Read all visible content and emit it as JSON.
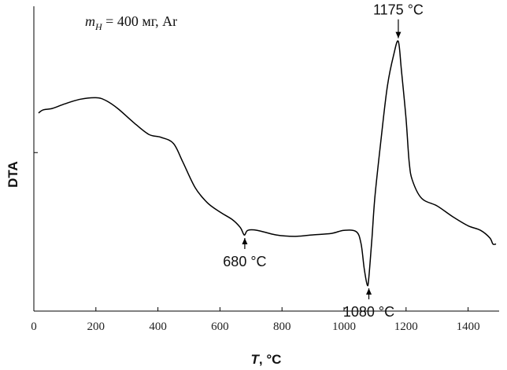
{
  "chart_data": {
    "type": "line",
    "title": "",
    "sample_note": {
      "prefix": "m",
      "subscript": "H",
      "rest": " = 400 мг, Ar"
    },
    "xlabel": {
      "symbol": "T",
      "unit": ", °C"
    },
    "ylabel": "DTA",
    "xlim": [
      0,
      1500
    ],
    "xticks": [
      0,
      200,
      400,
      600,
      800,
      1000,
      1200,
      1400
    ],
    "xtick_labels": [
      "0",
      "200",
      "400",
      "600",
      "800",
      "1000",
      "1200",
      "1400"
    ],
    "ylim": [
      0,
      100
    ],
    "yticks": [
      52
    ],
    "grid": false,
    "series": [
      {
        "x": [
          15,
          30,
          60,
          100,
          150,
          200,
          230,
          270,
          320,
          370,
          410,
          450,
          480,
          520,
          560,
          600,
          640,
          665,
          675,
          680,
          690,
          720,
          780,
          840,
          900,
          960,
          1000,
          1040,
          1055,
          1065,
          1075,
          1080,
          1090,
          1100,
          1120,
          1140,
          1160,
          1175,
          1185,
          1200,
          1210,
          1220,
          1250,
          1300,
          1350,
          1400,
          1440,
          1470,
          1480,
          1490
        ],
        "y": [
          65,
          66,
          66.5,
          68,
          69.5,
          70,
          69.2,
          66.5,
          62,
          58,
          57,
          55,
          49,
          40.5,
          35.5,
          32.5,
          30,
          27.5,
          25.5,
          25,
          26.5,
          26.5,
          25,
          24.5,
          25,
          25.5,
          26.5,
          26,
          22,
          14,
          8.5,
          11,
          24,
          38,
          57,
          74,
          84,
          88.5,
          79,
          63,
          49,
          43,
          37,
          34.5,
          31,
          28,
          26.5,
          24,
          22,
          22
        ]
      }
    ],
    "annotations": [
      {
        "text": "680 °C",
        "x": 680,
        "y": 25,
        "position": "below"
      },
      {
        "text": "1080 °C",
        "x": 1080,
        "y": 8.5,
        "position": "below"
      },
      {
        "text": "1175 °C",
        "x": 1175,
        "y": 88.5,
        "position": "above"
      }
    ],
    "line_color": "#000000"
  }
}
